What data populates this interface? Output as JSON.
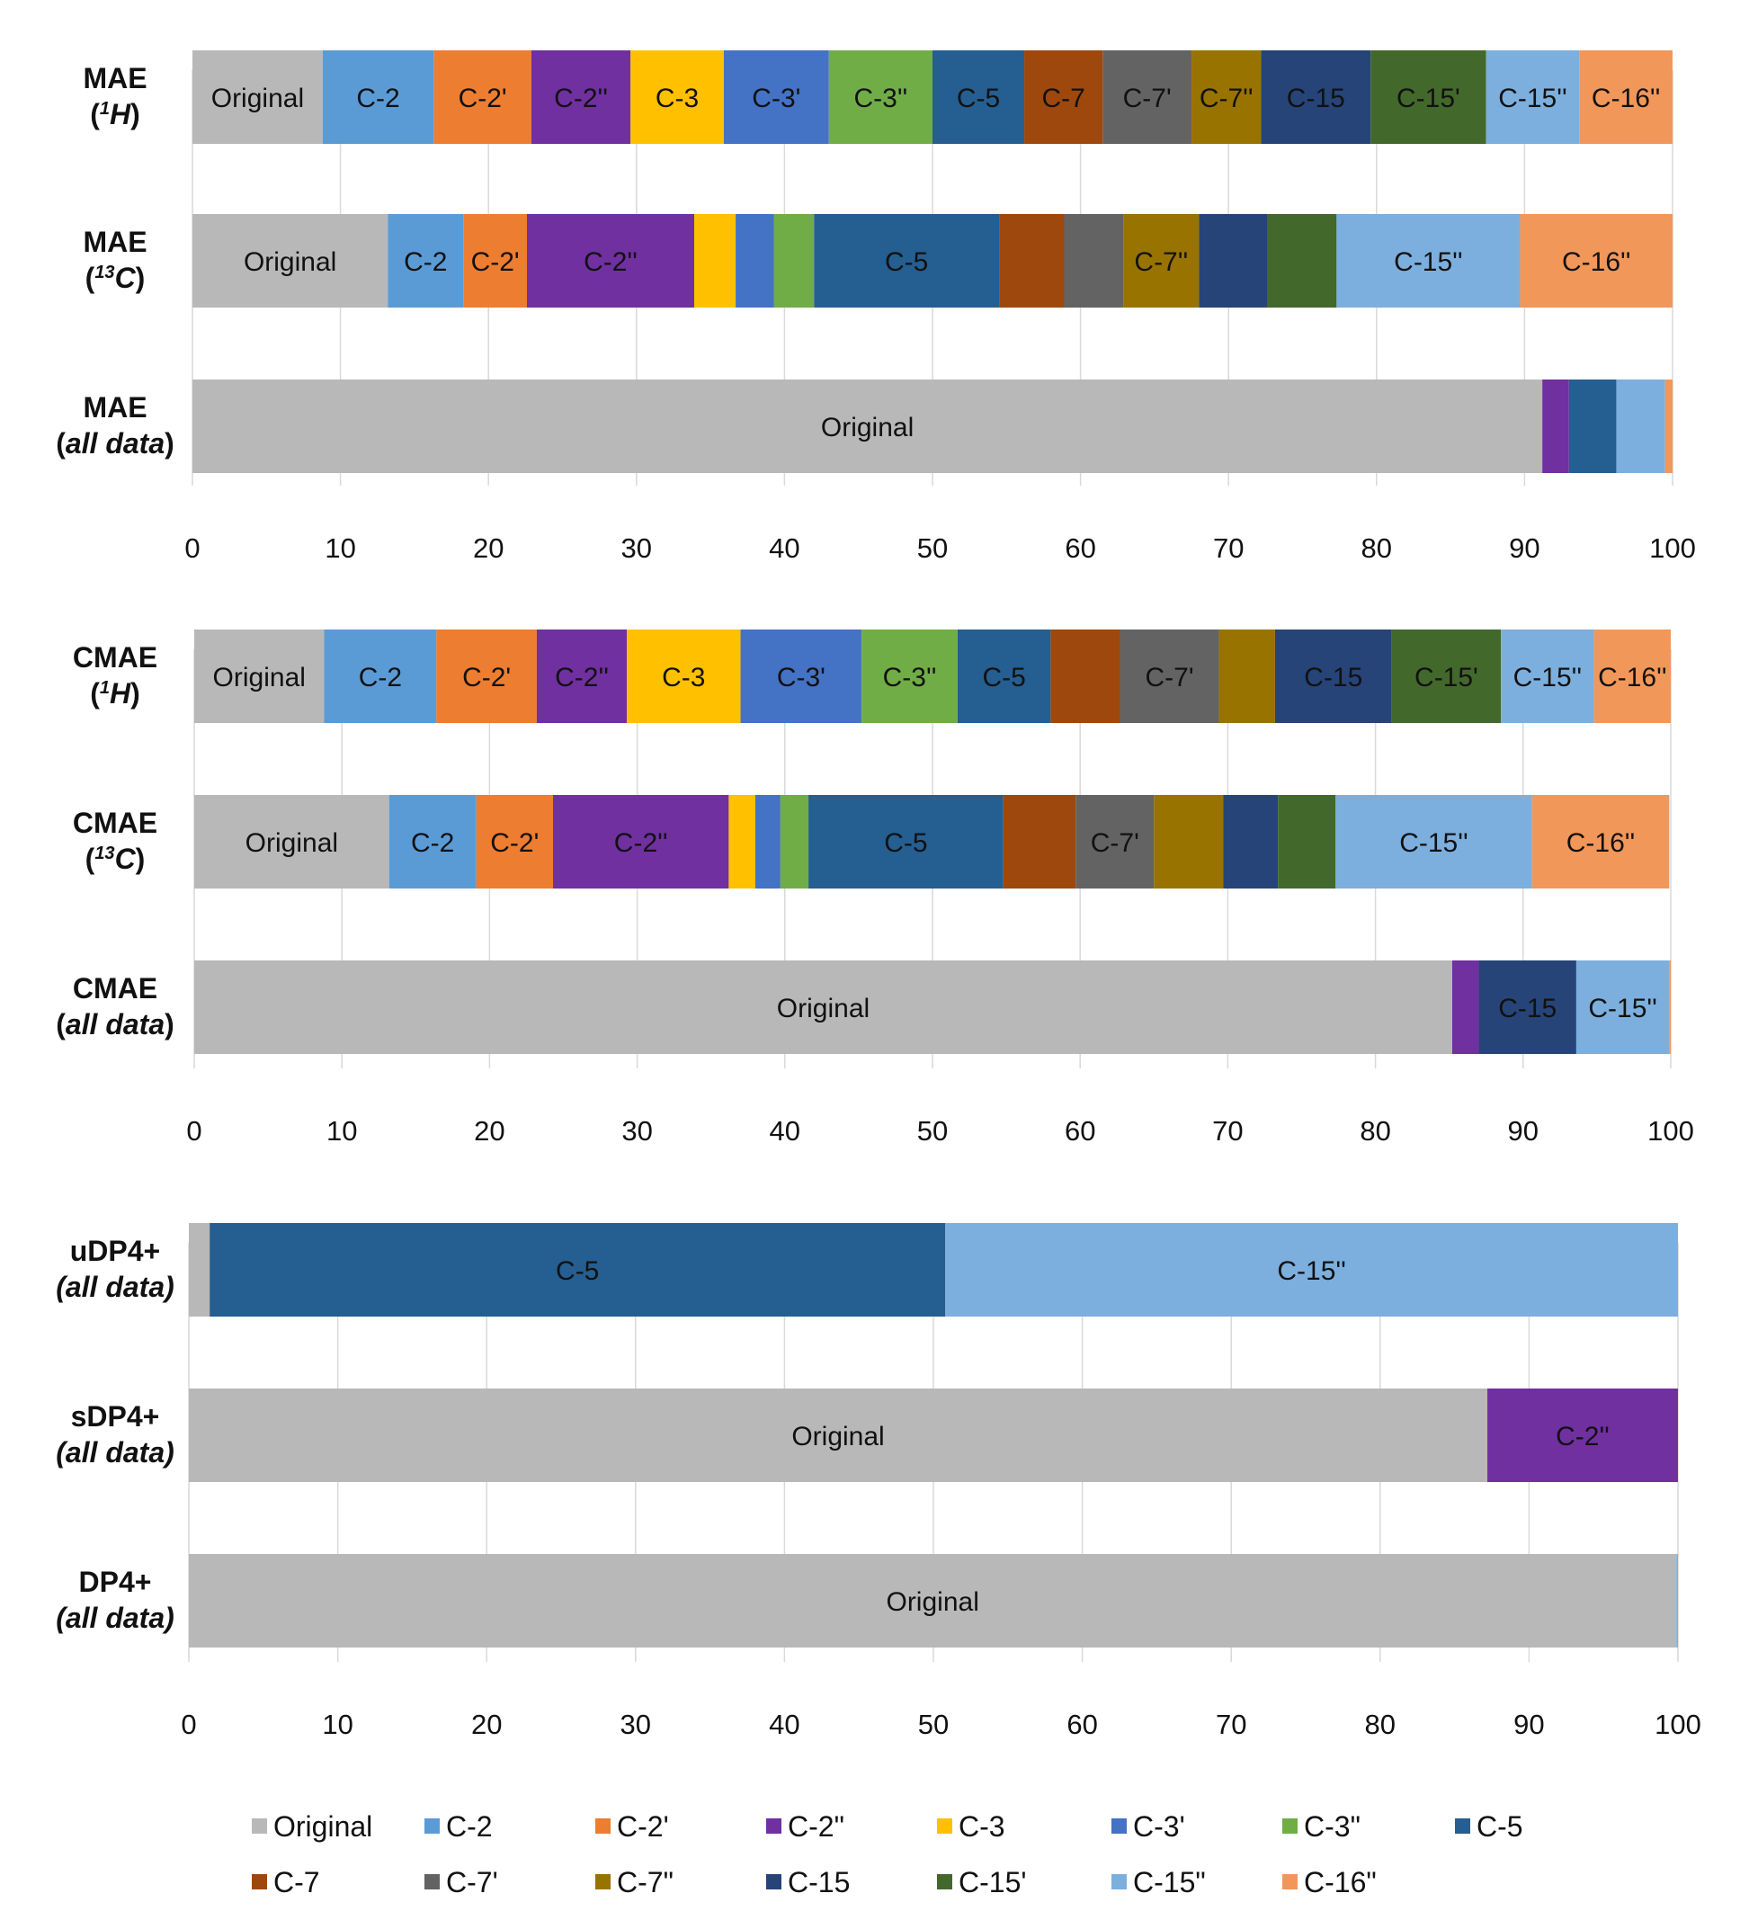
{
  "colors": {
    "Original": "#b8b8b8",
    "C-2": "#5b9bd5",
    "C-2'": "#ed7d31",
    "C-2\"": "#7030a0",
    "C-3": "#ffc000",
    "C-3'": "#4472c4",
    "C-3\"": "#70ad47",
    "C-5": "#255e91",
    "C-7": "#9e480e",
    "C-7'": "#636363",
    "C-7\"": "#997300",
    "C-15": "#264478",
    "C-15'": "#43682b",
    "C-15\"": "#7cafdd",
    "C-16\"": "#f1975a"
  },
  "legend": {
    "items": [
      {
        "key": "Original",
        "label": "Original"
      },
      {
        "key": "C-2",
        "label": "C-2"
      },
      {
        "key": "C-2'",
        "label": "C-2'"
      },
      {
        "key": "C-2\"",
        "label": "C-2\""
      },
      {
        "key": "C-3",
        "label": "C-3"
      },
      {
        "key": "C-3'",
        "label": "C-3'"
      },
      {
        "key": "C-3\"",
        "label": "C-3\""
      },
      {
        "key": "C-5",
        "label": "C-5"
      },
      {
        "key": "C-7",
        "label": "C-7"
      },
      {
        "key": "C-7'",
        "label": "C-7'"
      },
      {
        "key": "C-7\"",
        "label": "C-7\""
      },
      {
        "key": "C-15",
        "label": "C-15"
      },
      {
        "key": "C-15'",
        "label": "C-15'"
      },
      {
        "key": "C-15\"",
        "label": "C-15\""
      },
      {
        "key": "C-16\"",
        "label": "C-16\""
      }
    ]
  },
  "chart_data": [
    {
      "type": "bar",
      "orientation": "horizontal",
      "stacked": true,
      "xlim": [
        0,
        100
      ],
      "xticks": [
        "0",
        "10",
        "20",
        "30",
        "40",
        "50",
        "60",
        "70",
        "80",
        "90",
        "100"
      ],
      "grid": true,
      "rows": [
        {
          "label": "MAE",
          "sub": "(",
          "sup": "1",
          "italic": "H",
          "tail": ")",
          "segments": [
            {
              "key": "Original",
              "value": 8.8,
              "label": "Original"
            },
            {
              "key": "C-2",
              "value": 7.5,
              "label": "C-2"
            },
            {
              "key": "C-2'",
              "value": 6.6,
              "label": "C-2'"
            },
            {
              "key": "C-2\"",
              "value": 6.7,
              "label": "C-2''"
            },
            {
              "key": "C-3",
              "value": 6.3,
              "label": "C-3"
            },
            {
              "key": "C-3'",
              "value": 7.1,
              "label": "C-3'"
            },
            {
              "key": "C-3\"",
              "value": 7.0,
              "label": "C-3''"
            },
            {
              "key": "C-5",
              "value": 6.2,
              "label": "C-5"
            },
            {
              "key": "C-7",
              "value": 5.3,
              "label": "C-7"
            },
            {
              "key": "C-7'",
              "value": 6.0,
              "label": "C-7'"
            },
            {
              "key": "C-7\"",
              "value": 4.7,
              "label": "C-7''"
            },
            {
              "key": "C-15",
              "value": 7.4,
              "label": "C-15"
            },
            {
              "key": "C-15'",
              "value": 7.8,
              "label": "C-15'"
            },
            {
              "key": "C-15\"",
              "value": 6.3,
              "label": "C-15''"
            },
            {
              "key": "C-16\"",
              "value": 6.3,
              "label": "C-16''"
            }
          ]
        },
        {
          "label": "MAE",
          "sub": "(",
          "sup": "13",
          "italic": "C",
          "tail": ")",
          "segments": [
            {
              "key": "Original",
              "value": 13.2,
              "label": "Original"
            },
            {
              "key": "C-2",
              "value": 5.1,
              "label": "C-2"
            },
            {
              "key": "C-2'",
              "value": 4.3,
              "label": "C-2'"
            },
            {
              "key": "C-2\"",
              "value": 11.3,
              "label": "C-2''"
            },
            {
              "key": "C-3",
              "value": 2.8,
              "label": ""
            },
            {
              "key": "C-3'",
              "value": 2.6,
              "label": ""
            },
            {
              "key": "C-3\"",
              "value": 2.7,
              "label": ""
            },
            {
              "key": "C-5",
              "value": 12.5,
              "label": "C-5"
            },
            {
              "key": "C-7",
              "value": 4.4,
              "label": ""
            },
            {
              "key": "C-7'",
              "value": 4.0,
              "label": ""
            },
            {
              "key": "C-7\"",
              "value": 5.1,
              "label": "C-7''"
            },
            {
              "key": "C-15",
              "value": 4.6,
              "label": ""
            },
            {
              "key": "C-15'",
              "value": 4.7,
              "label": ""
            },
            {
              "key": "C-15\"",
              "value": 12.4,
              "label": "C-15''"
            },
            {
              "key": "C-16\"",
              "value": 10.3,
              "label": "C-16''"
            }
          ]
        },
        {
          "label": "MAE",
          "sub": "(",
          "sup": "",
          "italic": "all data",
          "tail": ")",
          "segments": [
            {
              "key": "Original",
              "value": 91.2,
              "label": "Original"
            },
            {
              "key": "C-2\"",
              "value": 1.8,
              "label": ""
            },
            {
              "key": "C-5",
              "value": 3.2,
              "label": ""
            },
            {
              "key": "C-15\"",
              "value": 3.3,
              "label": ""
            },
            {
              "key": "C-16\"",
              "value": 0.5,
              "label": ""
            }
          ]
        }
      ]
    },
    {
      "type": "bar",
      "orientation": "horizontal",
      "stacked": true,
      "xlim": [
        0,
        100
      ],
      "xticks": [
        "0",
        "10",
        "20",
        "30",
        "40",
        "50",
        "60",
        "70",
        "80",
        "90",
        "100"
      ],
      "grid": true,
      "rows": [
        {
          "label": "CMAE",
          "sub": "(",
          "sup": "1",
          "italic": "H",
          "tail": ")",
          "segments": [
            {
              "key": "Original",
              "value": 8.8,
              "label": "Original"
            },
            {
              "key": "C-2",
              "value": 7.6,
              "label": "C-2"
            },
            {
              "key": "C-2'",
              "value": 6.8,
              "label": "C-2'"
            },
            {
              "key": "C-2\"",
              "value": 6.1,
              "label": "C-2''"
            },
            {
              "key": "C-3",
              "value": 7.7,
              "label": "C-3"
            },
            {
              "key": "C-3'",
              "value": 8.2,
              "label": "C-3'"
            },
            {
              "key": "C-3\"",
              "value": 6.5,
              "label": "C-3''"
            },
            {
              "key": "C-5",
              "value": 6.3,
              "label": "C-5"
            },
            {
              "key": "C-7",
              "value": 4.7,
              "label": ""
            },
            {
              "key": "C-7'",
              "value": 6.7,
              "label": "C-7'"
            },
            {
              "key": "C-7\"",
              "value": 3.8,
              "label": ""
            },
            {
              "key": "C-15",
              "value": 7.9,
              "label": "C-15"
            },
            {
              "key": "C-15'",
              "value": 7.4,
              "label": "C-15'"
            },
            {
              "key": "C-15\"",
              "value": 6.3,
              "label": "C-15''"
            },
            {
              "key": "C-16\"",
              "value": 5.2,
              "label": "C-16''"
            }
          ]
        },
        {
          "label": "CMAE",
          "sub": "(",
          "sup": "13",
          "italic": "C",
          "tail": ")",
          "segments": [
            {
              "key": "Original",
              "value": 13.2,
              "label": "Original"
            },
            {
              "key": "C-2",
              "value": 5.9,
              "label": "C-2"
            },
            {
              "key": "C-2'",
              "value": 5.2,
              "label": "C-2'"
            },
            {
              "key": "C-2\"",
              "value": 11.9,
              "label": "C-2''"
            },
            {
              "key": "C-3",
              "value": 1.8,
              "label": ""
            },
            {
              "key": "C-3'",
              "value": 1.7,
              "label": ""
            },
            {
              "key": "C-3\"",
              "value": 1.9,
              "label": ""
            },
            {
              "key": "C-5",
              "value": 13.2,
              "label": "C-5"
            },
            {
              "key": "C-7",
              "value": 4.9,
              "label": ""
            },
            {
              "key": "C-7'",
              "value": 5.3,
              "label": "C-7'"
            },
            {
              "key": "C-7\"",
              "value": 4.7,
              "label": ""
            },
            {
              "key": "C-15",
              "value": 3.7,
              "label": ""
            },
            {
              "key": "C-15'",
              "value": 3.9,
              "label": ""
            },
            {
              "key": "C-15\"",
              "value": 13.3,
              "label": "C-15''"
            },
            {
              "key": "C-16\"",
              "value": 9.3,
              "label": "C-16''"
            }
          ]
        },
        {
          "label": "CMAE",
          "sub": "(",
          "sup": "",
          "italic": "all data",
          "tail": ")",
          "segments": [
            {
              "key": "Original",
              "value": 85.2,
              "label": "Original"
            },
            {
              "key": "C-2\"",
              "value": 1.8,
              "label": ""
            },
            {
              "key": "C-15",
              "value": 6.6,
              "label": "C-15"
            },
            {
              "key": "C-15\"",
              "value": 6.3,
              "label": "C-15''"
            },
            {
              "key": "C-16\"",
              "value": 0.1,
              "label": ""
            }
          ]
        }
      ]
    },
    {
      "type": "bar",
      "orientation": "horizontal",
      "stacked": true,
      "xlim": [
        0,
        100
      ],
      "xticks": [
        "0",
        "10",
        "20",
        "30",
        "40",
        "50",
        "60",
        "70",
        "80",
        "90",
        "100"
      ],
      "grid": true,
      "rows": [
        {
          "label": "uDP4+",
          "sub": "",
          "sup": "",
          "italic": "(all data)",
          "tail": "",
          "segments": [
            {
              "key": "Original",
              "value": 1.4,
              "label": ""
            },
            {
              "key": "C-5",
              "value": 49.4,
              "label": "C-5"
            },
            {
              "key": "C-15\"",
              "value": 49.2,
              "label": "C-15''"
            }
          ]
        },
        {
          "label": "sDP4+",
          "sub": "",
          "sup": "",
          "italic": "(all data)",
          "tail": "",
          "segments": [
            {
              "key": "Original",
              "value": 87.2,
              "label": "Original"
            },
            {
              "key": "C-2\"",
              "value": 12.8,
              "label": "C-2''"
            }
          ]
        },
        {
          "label": "DP4+",
          "sub": "",
          "sup": "",
          "italic": "(all data)",
          "tail": "",
          "segments": [
            {
              "key": "Original",
              "value": 99.9,
              "label": "Original"
            },
            {
              "key": "C-15\"",
              "value": 0.1,
              "label": ""
            }
          ]
        }
      ]
    }
  ]
}
